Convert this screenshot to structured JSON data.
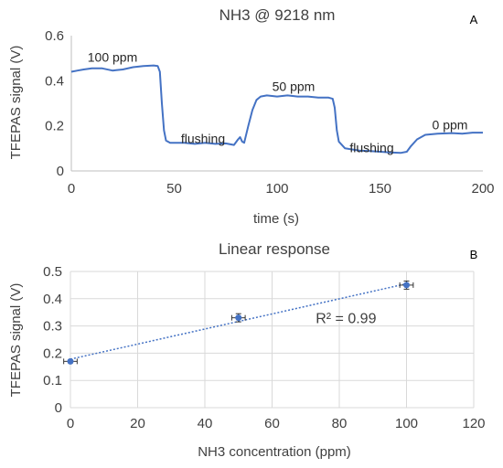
{
  "colors": {
    "series": "#4472c4",
    "axis": "#bfbfbf",
    "grid": "#d9d9d9",
    "text": "#404040"
  },
  "chart_data": [
    {
      "type": "line",
      "title": "NH3 @ 9218 nm",
      "panel_label": "A",
      "xlabel": "time (s)",
      "ylabel": "TFEPAS signal (V)",
      "xlim": [
        0,
        200
      ],
      "ylim": [
        0,
        0.6
      ],
      "xticks": [
        0,
        50,
        100,
        150,
        200
      ],
      "yticks": [
        0,
        0.2,
        0.4,
        0.6
      ],
      "grid": false,
      "series": [
        {
          "points": [
            [
              0,
              0.44
            ],
            [
              3,
              0.445
            ],
            [
              6,
              0.45
            ],
            [
              10,
              0.455
            ],
            [
              15,
              0.455
            ],
            [
              20,
              0.445
            ],
            [
              25,
              0.45
            ],
            [
              30,
              0.46
            ],
            [
              35,
              0.465
            ],
            [
              40,
              0.468
            ],
            [
              42,
              0.465
            ],
            [
              43,
              0.44
            ],
            [
              44,
              0.3
            ],
            [
              45,
              0.18
            ],
            [
              46,
              0.135
            ],
            [
              48,
              0.125
            ],
            [
              55,
              0.125
            ],
            [
              60,
              0.12
            ],
            [
              65,
              0.125
            ],
            [
              70,
              0.12
            ],
            [
              75,
              0.122
            ],
            [
              79,
              0.115
            ],
            [
              81,
              0.14
            ],
            [
              82,
              0.15
            ],
            [
              83,
              0.13
            ],
            [
              84,
              0.125
            ],
            [
              86,
              0.2
            ],
            [
              88,
              0.27
            ],
            [
              90,
              0.315
            ],
            [
              92,
              0.33
            ],
            [
              95,
              0.335
            ],
            [
              100,
              0.33
            ],
            [
              105,
              0.335
            ],
            [
              110,
              0.33
            ],
            [
              115,
              0.33
            ],
            [
              120,
              0.325
            ],
            [
              125,
              0.325
            ],
            [
              127,
              0.32
            ],
            [
              128,
              0.28
            ],
            [
              129,
              0.18
            ],
            [
              130,
              0.13
            ],
            [
              133,
              0.1
            ],
            [
              140,
              0.09
            ],
            [
              145,
              0.088
            ],
            [
              150,
              0.085
            ],
            [
              155,
              0.082
            ],
            [
              160,
              0.08
            ],
            [
              163,
              0.085
            ],
            [
              165,
              0.11
            ],
            [
              168,
              0.14
            ],
            [
              172,
              0.16
            ],
            [
              178,
              0.165
            ],
            [
              185,
              0.168
            ],
            [
              190,
              0.165
            ],
            [
              195,
              0.17
            ],
            [
              200,
              0.17
            ]
          ]
        }
      ],
      "annotations": [
        {
          "text": "100 ppm",
          "x": 20,
          "y": 0.5
        },
        {
          "text": "flushing",
          "x": 64,
          "y": 0.14
        },
        {
          "text": "50 ppm",
          "x": 108,
          "y": 0.37
        },
        {
          "text": "flushing",
          "x": 146,
          "y": 0.1
        },
        {
          "text": "0 ppm",
          "x": 184,
          "y": 0.2
        }
      ]
    },
    {
      "type": "scatter",
      "title": "Linear response",
      "panel_label": "B",
      "xlabel": "NH3 concentration (ppm)",
      "ylabel": "TFEPAS signal (V)",
      "xlim": [
        0,
        120
      ],
      "ylim": [
        0,
        0.5
      ],
      "xticks": [
        0,
        20,
        40,
        60,
        80,
        100,
        120
      ],
      "yticks": [
        0,
        0.1,
        0.2,
        0.3,
        0.4,
        0.5
      ],
      "grid": true,
      "points": [
        {
          "x": 0,
          "y": 0.17,
          "xerr": 2,
          "yerr": 0.005
        },
        {
          "x": 50,
          "y": 0.33,
          "xerr": 2,
          "yerr": 0.015
        },
        {
          "x": 100,
          "y": 0.45,
          "xerr": 2,
          "yerr": 0.015
        }
      ],
      "trendline": {
        "x": [
          0,
          100
        ],
        "y": [
          0.178,
          0.455
        ]
      },
      "r2_text": "R² = 0.99",
      "r2_position": {
        "x": 82,
        "y": 0.33
      }
    }
  ]
}
